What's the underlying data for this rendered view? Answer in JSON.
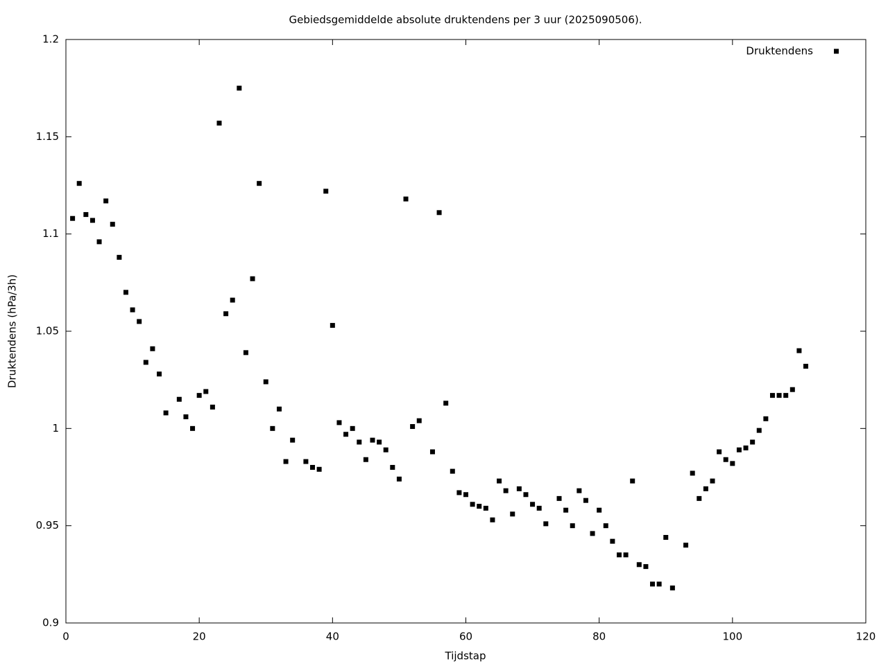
{
  "chart_data": {
    "type": "scatter",
    "title": "Gebiedsgemiddelde absolute druktendens per 3 uur (2025090506).",
    "x_label": "Tijdstap",
    "y_label": "Druktendens (hPa/3h)",
    "xlim": [
      0,
      120
    ],
    "xticks": [
      0,
      20,
      40,
      60,
      80,
      100,
      120
    ],
    "ylim": [
      0.9,
      1.2
    ],
    "yticks": [
      0.9,
      0.95,
      1,
      1.05,
      1.1,
      1.15,
      1.2
    ],
    "legend_position": "top-right",
    "series": [
      {
        "name": "Druktendens",
        "color": "#000000",
        "x": [
          1,
          2,
          3,
          4,
          5,
          6,
          7,
          8,
          9,
          10,
          11,
          12,
          13,
          14,
          15,
          17,
          18,
          19,
          20,
          21,
          22,
          23,
          24,
          25,
          26,
          27,
          28,
          29,
          30,
          31,
          32,
          33,
          34,
          36,
          37,
          38,
          39,
          40,
          41,
          42,
          43,
          44,
          45,
          46,
          47,
          48,
          49,
          50,
          51,
          52,
          53,
          55,
          56,
          57,
          58,
          59,
          60,
          61,
          62,
          63,
          64,
          65,
          66,
          67,
          68,
          69,
          70,
          71,
          72,
          74,
          75,
          76,
          77,
          78,
          79,
          80,
          81,
          82,
          83,
          84,
          85,
          86,
          87,
          88,
          89,
          90,
          91,
          93,
          94,
          95,
          96,
          97,
          98,
          99,
          100,
          101,
          102,
          103,
          104,
          105,
          106,
          107,
          108,
          109,
          110,
          111
        ],
        "values": [
          1.108,
          1.126,
          1.11,
          1.107,
          1.096,
          1.117,
          1.105,
          1.088,
          1.07,
          1.061,
          1.055,
          1.034,
          1.041,
          1.028,
          1.008,
          1.015,
          1.006,
          1.0,
          1.017,
          1.019,
          1.011,
          1.157,
          1.059,
          1.066,
          1.175,
          1.039,
          1.077,
          1.126,
          1.024,
          1.0,
          1.01,
          0.983,
          0.994,
          0.983,
          0.98,
          0.979,
          1.122,
          1.053,
          1.003,
          0.997,
          1.0,
          0.993,
          0.984,
          0.994,
          0.993,
          0.989,
          0.98,
          0.974,
          1.118,
          1.001,
          1.004,
          0.988,
          1.111,
          1.013,
          0.978,
          0.967,
          0.966,
          0.961,
          0.96,
          0.959,
          0.953,
          0.973,
          0.968,
          0.956,
          0.969,
          0.966,
          0.961,
          0.959,
          0.951,
          0.964,
          0.958,
          0.95,
          0.968,
          0.963,
          0.946,
          0.958,
          0.95,
          0.942,
          0.935,
          0.935,
          0.973,
          0.93,
          0.929,
          0.92,
          0.92,
          0.944,
          0.918,
          0.94,
          0.977,
          0.964,
          0.969,
          0.973,
          0.988,
          0.984,
          0.982,
          0.989,
          0.99,
          0.993,
          0.999,
          1.005,
          1.017,
          1.017,
          1.017,
          1.02,
          1.04,
          1.032
        ]
      }
    ]
  }
}
